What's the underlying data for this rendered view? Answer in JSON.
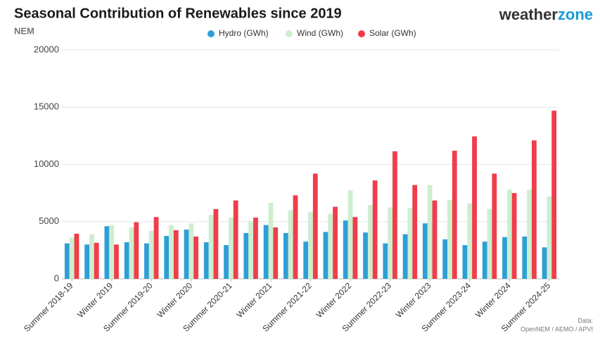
{
  "chart_data": {
    "type": "bar",
    "title": "Seasonal Contribution of Renewables since 2019",
    "subtitle": "NEM",
    "logo": [
      "weather",
      "zone"
    ],
    "source_title": "Data:",
    "source": "OpenNEM  / AEMO /  APVI",
    "categories": [
      "Summer 2018-19",
      null,
      "Winter 2019",
      null,
      "Summer 2019-20",
      null,
      "Winter 2020",
      null,
      "Summer 2020-21",
      null,
      "Winter 2021",
      null,
      "Summer 2021-22",
      null,
      "Winter 2022",
      null,
      "Summer 2022-23",
      null,
      "Winter 2023",
      null,
      "Summer 2023-24",
      null,
      "Winter 2024",
      null,
      "Summer 2024-25"
    ],
    "series": [
      {
        "name": "Hydro (GWh)",
        "color": "#2e9fd6",
        "values": [
          3100,
          3000,
          4600,
          3200,
          3100,
          3750,
          4300,
          3200,
          2950,
          4000,
          4700,
          4000,
          3250,
          4100,
          5100,
          4050,
          3100,
          3900,
          4850,
          3450,
          2950,
          3250,
          3650,
          3700,
          2750
        ]
      },
      {
        "name": "Wind (GWh)",
        "color": "#cdeecf",
        "values": [
          3600,
          3900,
          4700,
          4500,
          4200,
          4700,
          4850,
          5600,
          5350,
          5050,
          6650,
          6000,
          5850,
          5700,
          7750,
          6450,
          6250,
          6200,
          8200,
          6900,
          6600,
          6100,
          7800,
          7800,
          7200
        ]
      },
      {
        "name": "Solar (GWh)",
        "color": "#ef3e4a",
        "values": [
          3950,
          3150,
          3000,
          4950,
          5400,
          4250,
          3700,
          6100,
          6850,
          5350,
          4500,
          7300,
          9200,
          6300,
          5400,
          8600,
          11150,
          8200,
          6850,
          11200,
          12450,
          9200,
          7500,
          12100,
          14700
        ]
      }
    ],
    "ylim": [
      0,
      20000
    ],
    "yticks": [
      0,
      5000,
      10000,
      15000,
      20000
    ],
    "grid": true
  }
}
